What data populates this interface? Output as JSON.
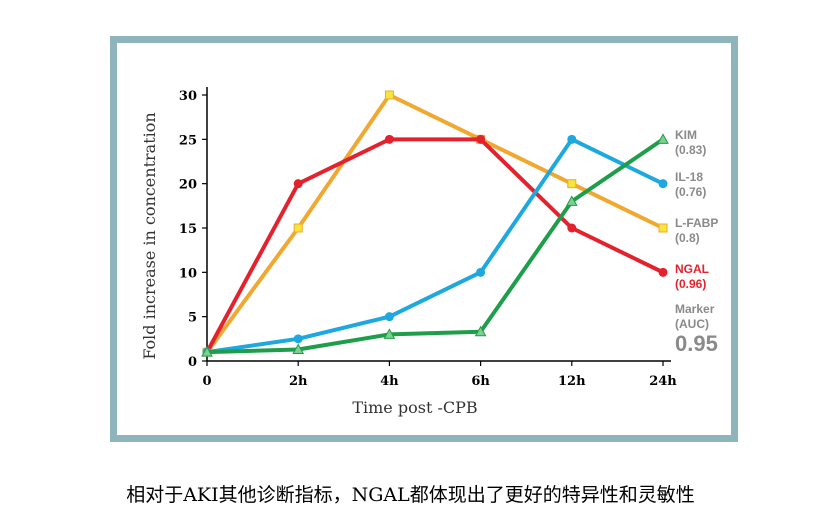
{
  "chart_data": {
    "type": "line",
    "xlabel": "Time post -CPB",
    "ylabel": "Fold increase in concentration",
    "categories": [
      "0",
      "2h",
      "4h",
      "6h",
      "12h",
      "24h"
    ],
    "y_ticks": [
      "0",
      "5",
      "10",
      "15",
      "20",
      "25",
      "30"
    ],
    "ylim": [
      0,
      30
    ],
    "grid": false,
    "series": [
      {
        "name": "L-FABP",
        "color": "#f0a830",
        "marker_color": "#f4e63c",
        "values": [
          1,
          15,
          30,
          25,
          20,
          15
        ]
      },
      {
        "name": "NGAL",
        "color": "#e4222d",
        "marker_color": "#e4222d",
        "values": [
          1,
          20,
          25,
          25,
          15,
          10
        ]
      },
      {
        "name": "IL-18",
        "color": "#1ea8e0",
        "marker_color": "#1ea8e0",
        "values": [
          1,
          2.5,
          5,
          10,
          25,
          20
        ]
      },
      {
        "name": "KIM",
        "color": "#1e9e4a",
        "marker_color": "#7ccf8f",
        "values": [
          1,
          1.3,
          3,
          3.3,
          18,
          25
        ]
      }
    ],
    "legend": [
      {
        "name": "KIM",
        "auc": "(0.83)",
        "color": "#8a8a8a"
      },
      {
        "name": "IL-18",
        "auc": "(0.76)",
        "color": "#8a8a8a"
      },
      {
        "name": "L-FABP",
        "auc": "(0.8)",
        "color": "#8a8a8a"
      },
      {
        "name": "NGAL",
        "auc": "(0.96)",
        "color": "#e4222d"
      },
      {
        "name": "Marker",
        "auc": "(AUC)",
        "color": "#8a8a8a"
      }
    ],
    "legend_value": "0.95",
    "legend_placement": "right"
  },
  "caption": "相对于AKI其他诊断指标，NGAL都体现出了更好的特异性和灵敏性"
}
